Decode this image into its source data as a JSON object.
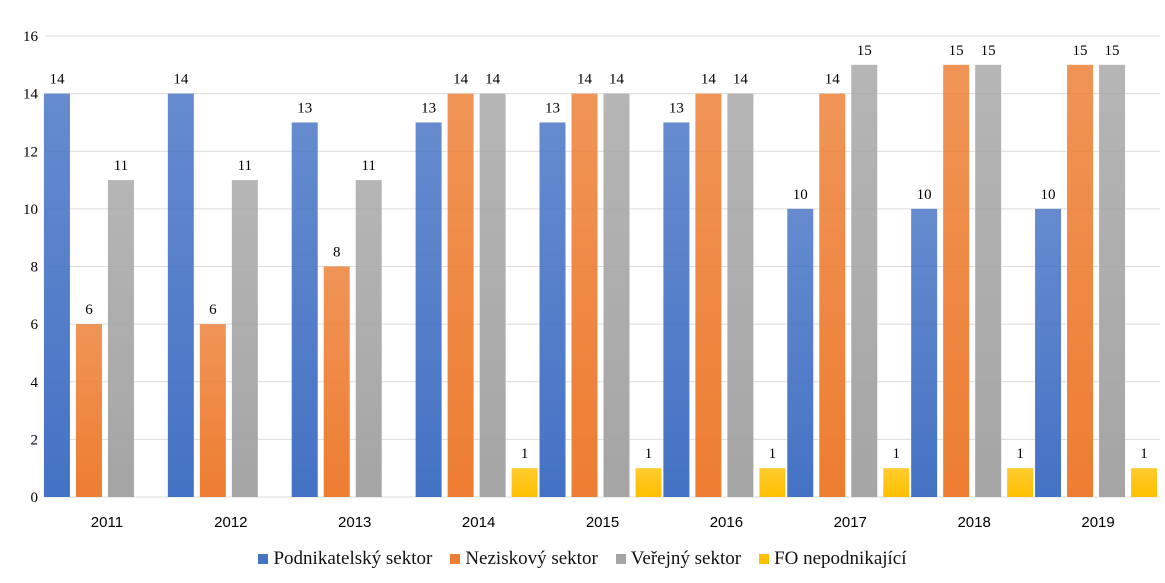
{
  "chart_data": {
    "type": "bar",
    "categories": [
      "2011",
      "2012",
      "2013",
      "2014",
      "2015",
      "2016",
      "2017",
      "2018",
      "2019"
    ],
    "ylim": [
      0,
      16
    ],
    "yticks": [
      0,
      2,
      4,
      6,
      8,
      10,
      12,
      14,
      16
    ],
    "grid": true,
    "legend_position": "bottom",
    "series": [
      {
        "name": "Podnikatelský sektor",
        "color": "#4472c4",
        "values": [
          14,
          14,
          13,
          13,
          13,
          13,
          10,
          10,
          10
        ]
      },
      {
        "name": "Neziskový sektor",
        "color": "#ed7d31",
        "values": [
          6,
          6,
          8,
          14,
          14,
          14,
          14,
          15,
          15
        ]
      },
      {
        "name": "Veřejný sektor",
        "color": "#a5a5a5",
        "values": [
          11,
          11,
          11,
          14,
          14,
          14,
          15,
          15,
          15
        ]
      },
      {
        "name": "FO nepodnikající",
        "color": "#ffc000",
        "values": [
          null,
          null,
          null,
          1,
          1,
          1,
          1,
          1,
          1
        ]
      }
    ]
  }
}
